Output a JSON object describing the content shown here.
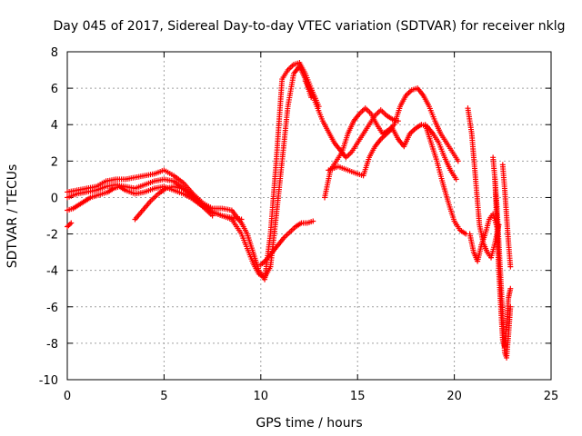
{
  "chart_data": {
    "type": "scatter",
    "title": "Day 045 of 2017, Sidereal Day-to-day VTEC variation (SDTVAR) for receiver nklg",
    "xlabel": "GPS time / hours",
    "ylabel": "SDTVAR / TECUs",
    "xlim": [
      0,
      25
    ],
    "ylim": [
      -10,
      8
    ],
    "xticks": [
      0,
      5,
      10,
      15,
      20,
      25
    ],
    "yticks": [
      -10,
      -8,
      -6,
      -4,
      -2,
      0,
      2,
      4,
      6,
      8
    ],
    "grid": true,
    "legend": "none",
    "marker": "+",
    "color": "#ff0000",
    "series": [
      {
        "x": [
          0.0,
          0.5,
          1.0,
          1.5,
          2.0,
          2.5,
          3.0,
          3.5,
          4.0,
          4.5,
          5.0,
          5.5,
          6.0,
          6.5,
          7.0,
          7.5,
          8.0,
          8.5,
          9.0,
          9.3,
          9.6,
          9.9,
          10.2,
          10.5,
          10.8,
          11.1,
          11.4,
          11.7,
          12.0,
          12.3,
          12.6,
          13.0
        ],
        "y": [
          0.3,
          0.4,
          0.5,
          0.6,
          0.9,
          1.0,
          1.0,
          1.1,
          1.2,
          1.3,
          1.5,
          1.2,
          0.8,
          0.2,
          -0.3,
          -0.6,
          -0.6,
          -0.7,
          -1.4,
          -2.0,
          -3.0,
          -4.0,
          -4.5,
          -2.0,
          2.0,
          6.5,
          7.0,
          7.3,
          7.4,
          6.8,
          6.0,
          5.0
        ]
      },
      {
        "x": [
          0.0,
          0.5,
          1.0,
          1.5,
          2.0,
          2.5,
          3.0,
          3.5,
          4.0,
          4.5,
          5.0,
          5.5,
          6.0,
          6.5,
          7.0,
          7.5,
          8.0,
          8.5,
          9.0,
          9.3,
          9.6,
          9.9,
          10.2,
          10.5,
          10.8,
          11.1,
          11.4,
          11.7,
          12.0,
          12.3,
          12.6
        ],
        "y": [
          0.0,
          0.2,
          0.3,
          0.4,
          0.6,
          0.7,
          0.6,
          0.5,
          0.7,
          0.9,
          1.0,
          0.9,
          0.5,
          0.0,
          -0.4,
          -0.8,
          -1.0,
          -1.2,
          -2.0,
          -2.8,
          -3.6,
          -4.2,
          -4.4,
          -3.8,
          -1.0,
          2.0,
          5.0,
          6.8,
          7.2,
          6.5,
          5.5
        ]
      },
      {
        "x": [
          0.0,
          0.3,
          0.6,
          0.9,
          1.2,
          1.5,
          1.8,
          2.1,
          2.4,
          2.7,
          3.0,
          3.5,
          4.0,
          4.5,
          5.0,
          5.5,
          6.0,
          6.5,
          7.0,
          7.5,
          8.0,
          8.5,
          9.0
        ],
        "y": [
          -0.7,
          -0.6,
          -0.4,
          -0.2,
          0.0,
          0.1,
          0.2,
          0.3,
          0.5,
          0.6,
          0.4,
          0.2,
          0.3,
          0.5,
          0.6,
          0.4,
          0.2,
          -0.1,
          -0.5,
          -0.8,
          -1.0,
          -1.1,
          -1.2
        ]
      },
      {
        "x": [
          0.0,
          0.2
        ],
        "y": [
          -1.6,
          -1.4
        ]
      },
      {
        "x": [
          3.5,
          3.9,
          4.3,
          4.7,
          5.1,
          5.5,
          5.9,
          6.3,
          6.7,
          7.1,
          7.5
        ],
        "y": [
          -1.2,
          -0.7,
          -0.2,
          0.2,
          0.5,
          0.6,
          0.5,
          0.3,
          -0.1,
          -0.6,
          -1.0
        ]
      },
      {
        "x": [
          10.0,
          10.3,
          10.6,
          10.9,
          11.2,
          11.5,
          11.8,
          12.1,
          12.4,
          12.7
        ],
        "y": [
          -3.7,
          -3.4,
          -3.0,
          -2.6,
          -2.2,
          -1.9,
          -1.6,
          -1.4,
          -1.4,
          -1.3
        ]
      },
      {
        "x": [
          13.3,
          13.6,
          13.9,
          14.2,
          14.5,
          14.8,
          15.1,
          15.4,
          15.7,
          16.0,
          16.3,
          16.6,
          16.9,
          17.2,
          17.5,
          17.8,
          18.1,
          18.4,
          18.7,
          19.0,
          19.3,
          19.6,
          19.9,
          20.2
        ],
        "y": [
          0.0,
          1.5,
          2.0,
          2.5,
          3.5,
          4.2,
          4.6,
          4.9,
          4.6,
          4.0,
          3.5,
          3.7,
          4.0,
          5.0,
          5.6,
          5.9,
          6.0,
          5.6,
          5.0,
          4.2,
          3.5,
          3.0,
          2.5,
          2.0
        ]
      },
      {
        "x": [
          13.5,
          14.0,
          14.5,
          15.0,
          15.3,
          15.6,
          15.9,
          16.2,
          16.5,
          16.8,
          17.1,
          17.4,
          17.7,
          18.0,
          18.3,
          18.6,
          18.9,
          19.2,
          19.5,
          19.8,
          20.1
        ],
        "y": [
          1.5,
          1.7,
          1.5,
          1.3,
          1.2,
          2.2,
          2.8,
          3.2,
          3.5,
          3.8,
          3.2,
          2.8,
          3.5,
          3.8,
          4.0,
          3.9,
          3.5,
          3.0,
          2.2,
          1.5,
          1.0
        ]
      },
      {
        "x": [
          12.3,
          12.6,
          12.9,
          13.2,
          13.5,
          13.8,
          14.1,
          14.4,
          14.7,
          15.0,
          15.3,
          15.6,
          15.9,
          16.2,
          16.5,
          16.8,
          17.1
        ],
        "y": [
          6.4,
          5.8,
          5.0,
          4.2,
          3.6,
          3.0,
          2.6,
          2.2,
          2.5,
          3.0,
          3.5,
          4.0,
          4.5,
          4.8,
          4.5,
          4.3,
          4.2
        ]
      },
      {
        "x": [
          18.5,
          18.8,
          19.1,
          19.4,
          19.7,
          20.0,
          20.3,
          20.6
        ],
        "y": [
          4.0,
          3.0,
          2.0,
          0.8,
          -0.3,
          -1.3,
          -1.8,
          -2.0
        ]
      },
      {
        "x": [
          20.7,
          20.9,
          21.1,
          21.3,
          21.5,
          21.7,
          21.9,
          22.1,
          22.3
        ],
        "y": [
          4.9,
          3.5,
          1.0,
          -1.5,
          -2.5,
          -3.0,
          -3.3,
          -2.5,
          -1.5
        ]
      },
      {
        "x": [
          20.8,
          21.0,
          21.2,
          21.4,
          21.6,
          21.8,
          22.0,
          22.2
        ],
        "y": [
          -2.0,
          -3.0,
          -3.5,
          -2.6,
          -2.0,
          -1.2,
          -0.9,
          -1.6
        ]
      },
      {
        "x": [
          22.0,
          22.1,
          22.2,
          22.3,
          22.4,
          22.5,
          22.6,
          22.7,
          22.8,
          22.9
        ],
        "y": [
          2.2,
          1.0,
          -0.5,
          -2.5,
          -4.5,
          -6.5,
          -8.5,
          -8.8,
          -7.5,
          -6.0
        ]
      },
      {
        "x": [
          22.1,
          22.2,
          22.3,
          22.4,
          22.5,
          22.6,
          22.7,
          22.8,
          22.9
        ],
        "y": [
          1.0,
          -1.5,
          -4.0,
          -6.0,
          -7.8,
          -8.2,
          -7.0,
          -5.5,
          -5.0
        ]
      },
      {
        "x": [
          22.5,
          22.6,
          22.7,
          22.8,
          22.9
        ],
        "y": [
          1.8,
          0.5,
          -1.0,
          -2.5,
          -3.8
        ]
      }
    ]
  }
}
